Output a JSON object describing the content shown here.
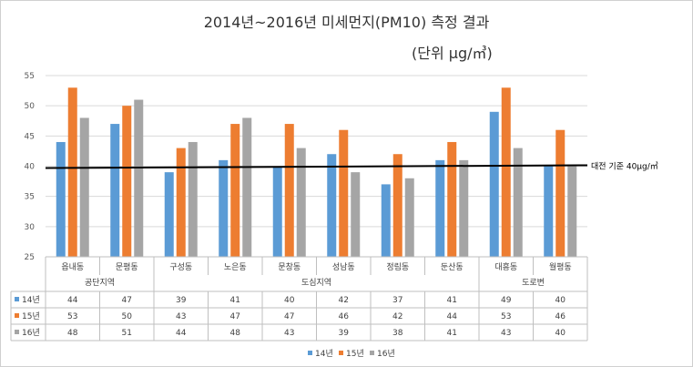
{
  "chart_data": {
    "type": "bar",
    "title": "2014년~2016년 미세먼지(PM10) 측정 결과",
    "subtitle": "(단위 μg/㎥)",
    "categories": [
      "읍내동",
      "문평동",
      "구성동",
      "노은동",
      "문창동",
      "성남동",
      "정림동",
      "둔산동",
      "대흥동",
      "월평동"
    ],
    "groups": [
      {
        "label": "공단지역",
        "span": 2
      },
      {
        "label": "도심지역",
        "span": 6
      },
      {
        "label": "도로변",
        "span": 2
      }
    ],
    "series": [
      {
        "name": "14년",
        "color": "#5B9BD5",
        "values": [
          44,
          47,
          39,
          41,
          40,
          42,
          37,
          41,
          49,
          40
        ]
      },
      {
        "name": "15년",
        "color": "#ED7D31",
        "values": [
          53,
          50,
          43,
          47,
          47,
          46,
          42,
          44,
          53,
          46
        ]
      },
      {
        "name": "16년",
        "color": "#A5A5A5",
        "values": [
          48,
          51,
          44,
          48,
          43,
          39,
          38,
          41,
          43,
          40
        ]
      }
    ],
    "ylim": [
      25,
      55
    ],
    "yticks": [
      25,
      30,
      35,
      40,
      45,
      50,
      55
    ],
    "grid": true,
    "reference_line": {
      "value": 40,
      "label": "대전 기준 40μg/㎥"
    },
    "data_table": true,
    "legend": "bottom"
  }
}
